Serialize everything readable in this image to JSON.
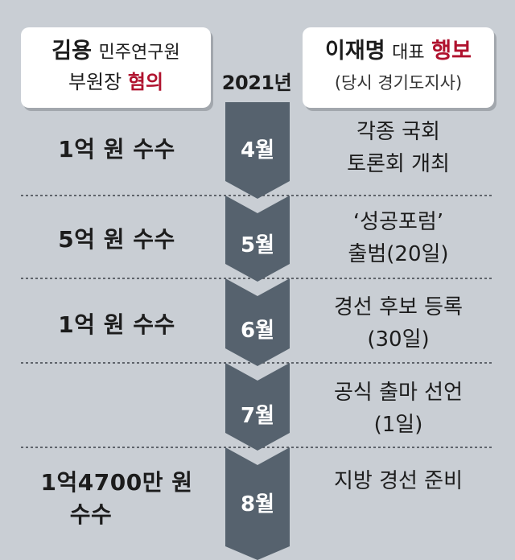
{
  "header_left": {
    "name": "김용",
    "title_line1": "민주연구원",
    "title_line2": "부원장",
    "tag": "혐의"
  },
  "header_right": {
    "name": "이재명",
    "title": "대표",
    "tag": "행보",
    "sub": "(당시 경기도지사)"
  },
  "year": "2021년",
  "colors": {
    "background": "#c9ced4",
    "chevron": "#56626e",
    "accent_red": "#b0122e"
  },
  "rows": [
    {
      "month": "4월",
      "left": [
        "1억 원 수수"
      ],
      "right": [
        "각종 국회",
        "토론회 개최"
      ]
    },
    {
      "month": "5월",
      "left": [
        "5억 원 수수"
      ],
      "right": [
        "‘성공포럼’",
        "출범(20일)"
      ]
    },
    {
      "month": "6월",
      "left": [
        "1억 원 수수"
      ],
      "right": [
        "경선 후보 등록",
        "(30일)"
      ]
    },
    {
      "month": "7월",
      "left": [],
      "right": [
        "공식 출마 선언",
        "(1일)"
      ]
    },
    {
      "month": "8월",
      "left": [
        "1억4700만 원",
        "수수"
      ],
      "right": [
        "지방 경선 준비"
      ]
    }
  ]
}
